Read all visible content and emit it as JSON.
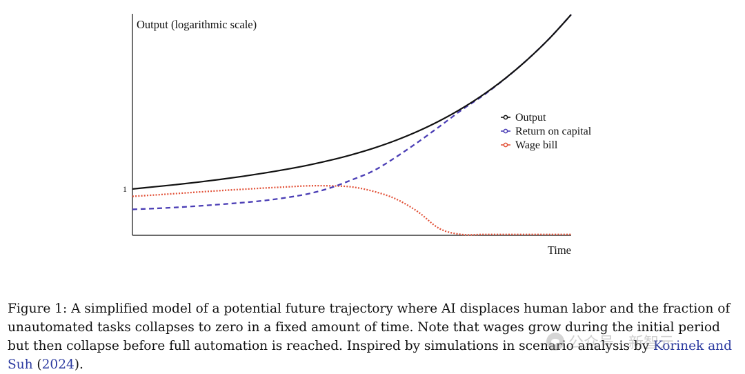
{
  "figure": {
    "chart_data": {
      "type": "line",
      "ylabel": "Output (logarithmic scale)",
      "xlabel": "Time",
      "yscale": "log",
      "yticks": [
        1
      ],
      "ytick_labels": [
        "1"
      ],
      "xticks": [],
      "grid": false,
      "legend_position": "right",
      "x": [
        0,
        0.05,
        0.1,
        0.15,
        0.2,
        0.25,
        0.3,
        0.35,
        0.4,
        0.45,
        0.5,
        0.55,
        0.6,
        0.65,
        0.7,
        0.75,
        0.8,
        0.85,
        0.9,
        0.95,
        1.0
      ],
      "series": [
        {
          "name": "Output",
          "style": "solid",
          "color": "#111111",
          "values": [
            1.0,
            1.014,
            1.028,
            1.044,
            1.062,
            1.082,
            1.105,
            1.131,
            1.161,
            1.197,
            1.24,
            1.292,
            1.356,
            1.435,
            1.533,
            1.655,
            1.808,
            2.002,
            2.249,
            2.567,
            2.985
          ]
        },
        {
          "name": "Return on capital",
          "style": "dashed",
          "color": "#4a3db5",
          "values": [
            0.88,
            0.885,
            0.891,
            0.899,
            0.908,
            0.918,
            0.93,
            0.947,
            0.97,
            1.006,
            1.059,
            1.122,
            1.22,
            1.34,
            1.48,
            1.64,
            1.8,
            2.0,
            2.25,
            2.567,
            2.985
          ]
        },
        {
          "name": "Wage bill",
          "style": "dotted",
          "color": "#e2533a",
          "values": [
            0.955,
            0.963,
            0.972,
            0.981,
            0.99,
            0.998,
            1.006,
            1.013,
            1.02,
            1.02,
            1.013,
            0.985,
            0.94,
            0.868,
            0.78,
            0.752,
            0.752,
            0.752,
            0.752,
            0.752,
            0.752
          ]
        }
      ]
    }
  },
  "caption": {
    "label": "Figure 1:",
    "text": "A simplified model of a potential future trajectory where AI displaces human labor and the fraction of unautomated tasks collapses to zero in a fixed amount of time. Note that wages grow during the initial period but then collapse before full automation is reached. Inspired by simulations in scenario analysis by",
    "citation": "Korinek and Suh",
    "year_open": "(",
    "year": "2024",
    "year_close": ").",
    "trailing": ""
  },
  "watermark": {
    "text": "公众号 · 新智元",
    "logo_icon": "wechat-logo-icon"
  }
}
